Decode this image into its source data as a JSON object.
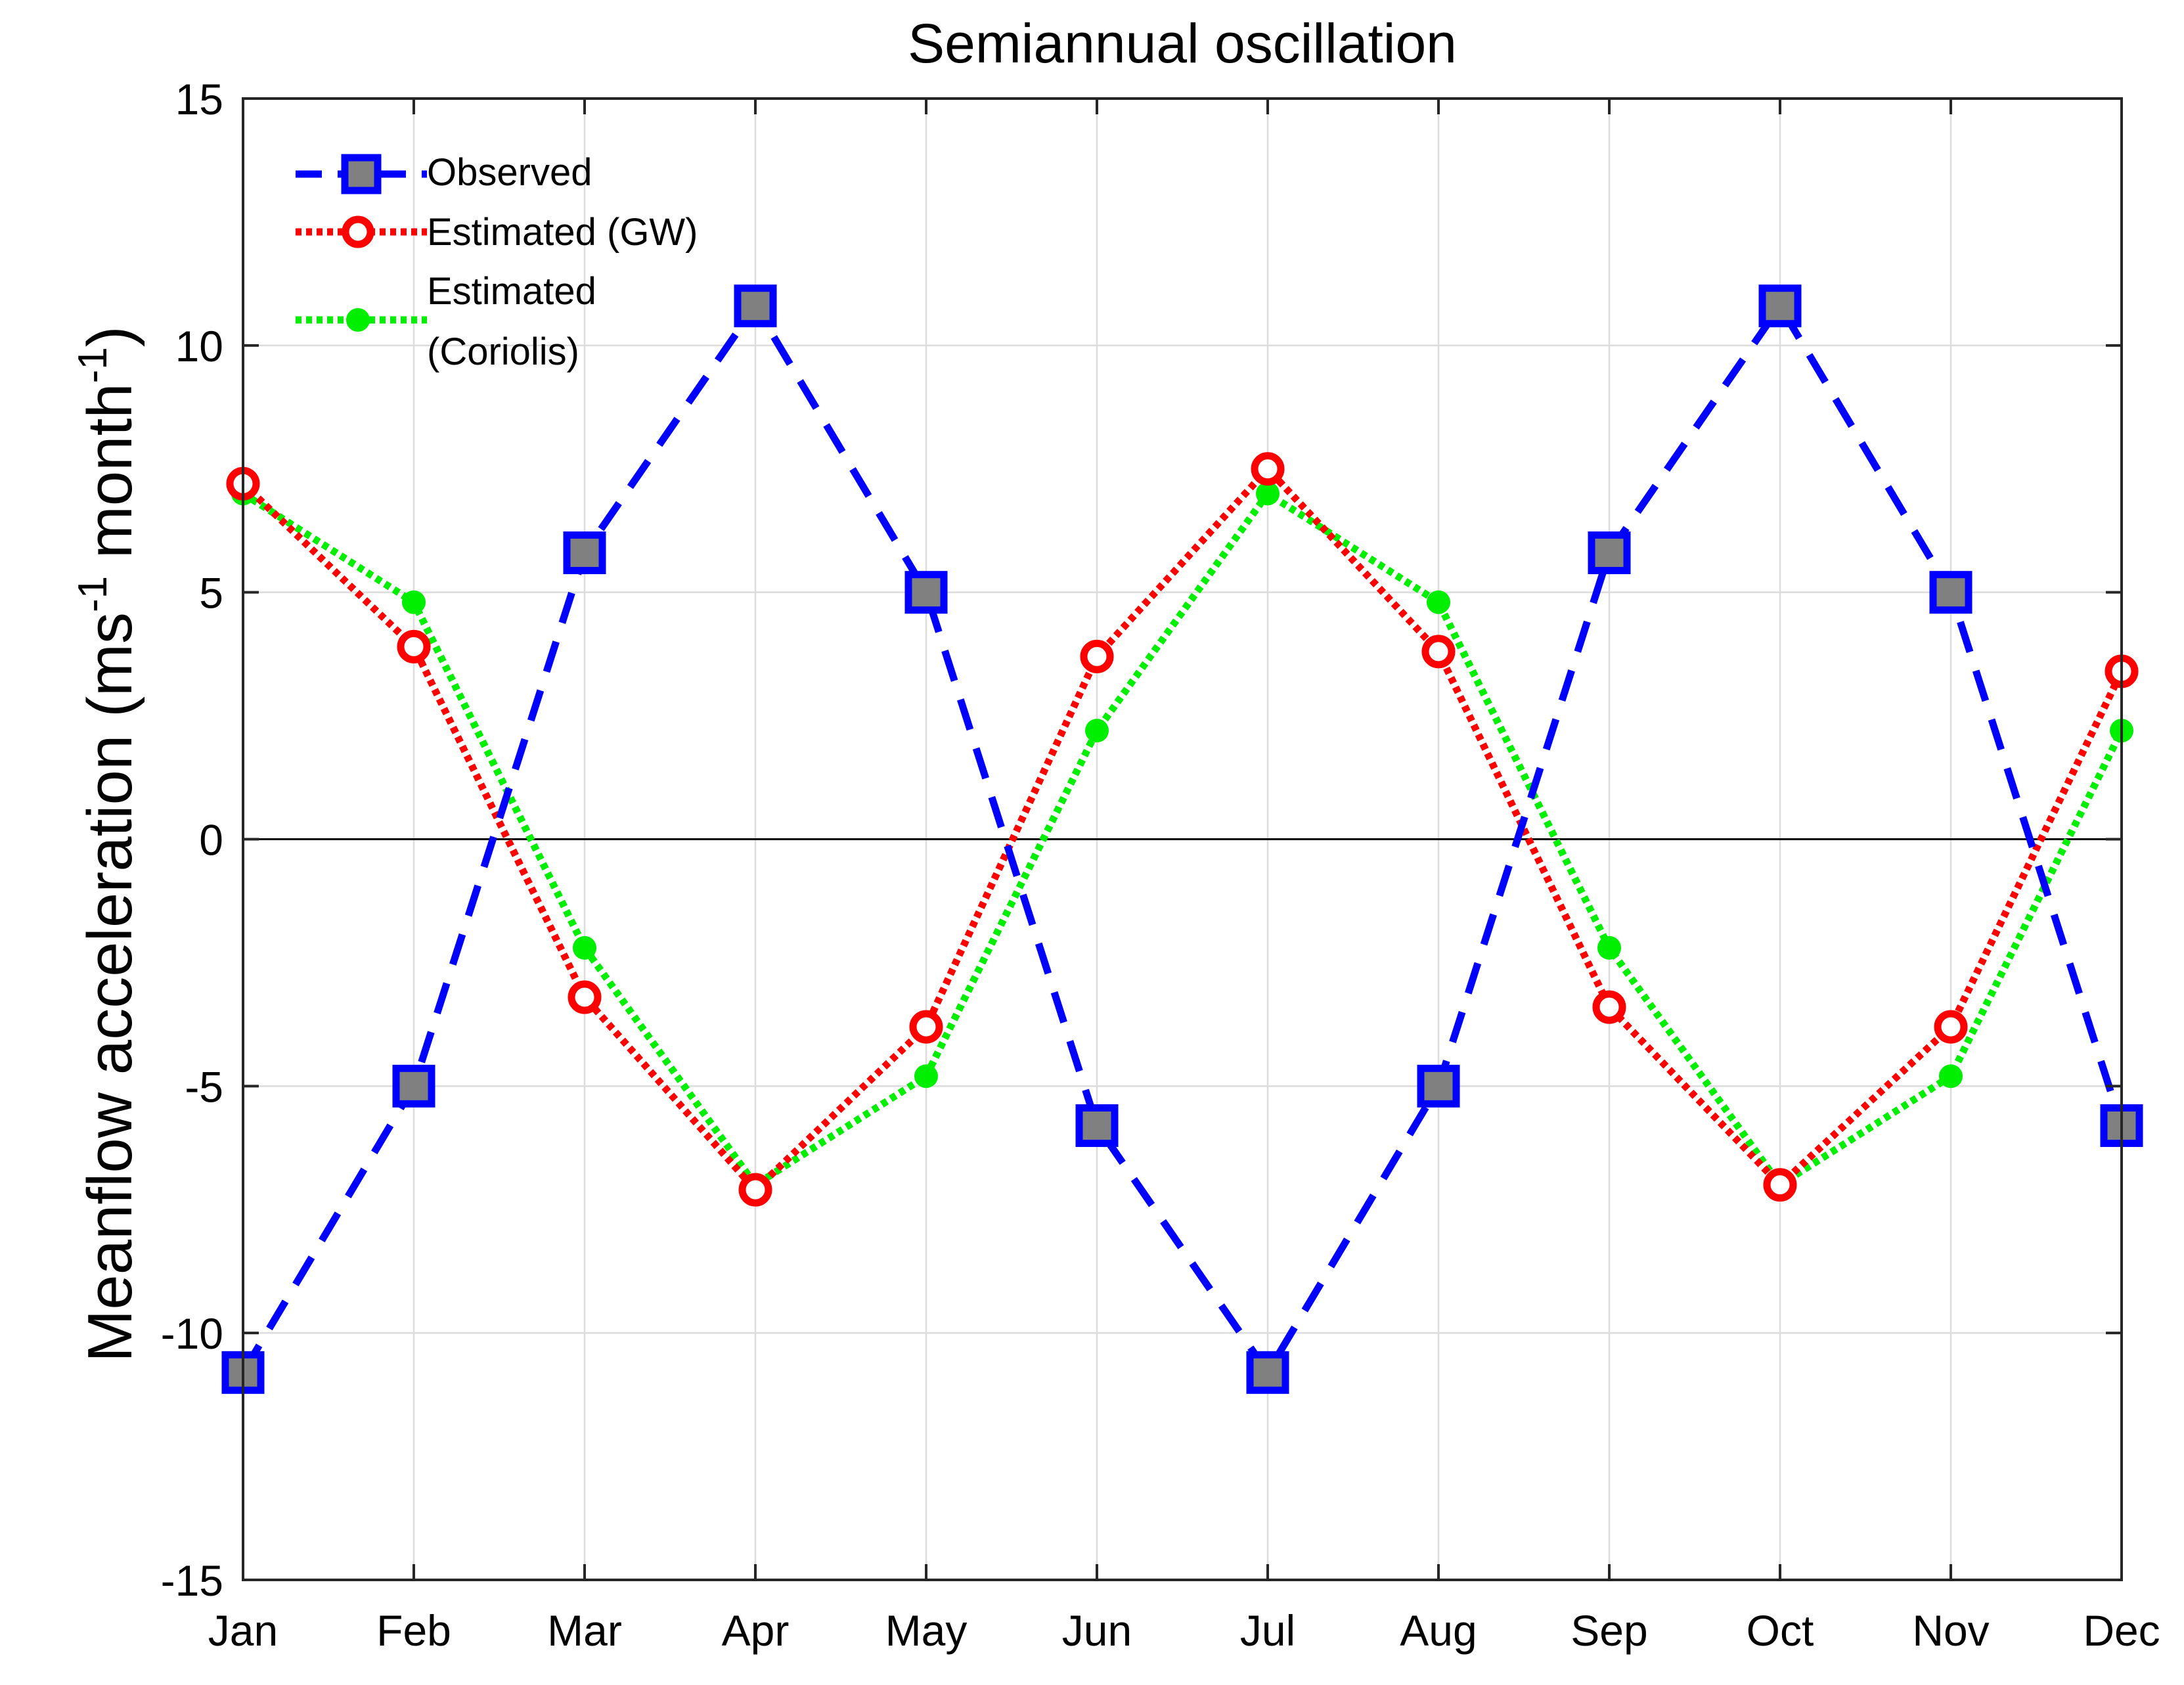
{
  "chart_data": {
    "type": "line",
    "title": "Semiannual oscillation",
    "xlabel": "",
    "ylabel_main": "Meanflow acceleration (ms",
    "ylabel_sup1": "-1",
    "ylabel_mid": " month",
    "ylabel_sup2": "-1",
    "ylabel_end": ")",
    "categories": [
      "Jan",
      "Feb",
      "Mar",
      "Apr",
      "May",
      "Jun",
      "Jul",
      "Aug",
      "Sep",
      "Oct",
      "Nov",
      "Dec"
    ],
    "ylim": [
      -15,
      15
    ],
    "yticks": [
      "-15",
      "-10",
      "-5",
      "0",
      "5",
      "10",
      "15"
    ],
    "grid": true,
    "legend_position": "top-left",
    "series": [
      {
        "name": "Observed",
        "color": "#0000ff",
        "marker_fill": "#808080",
        "line_style": "dashed",
        "marker": "square",
        "values": [
          -10.8,
          -5.0,
          5.8,
          10.8,
          5.0,
          -5.8,
          -10.8,
          -5.0,
          5.8,
          10.8,
          5.0,
          -5.8
        ]
      },
      {
        "name": "Estimated (GW)",
        "color": "#ff0000",
        "line_style": "dotted",
        "marker": "circle",
        "values": [
          7.2,
          3.9,
          -3.2,
          -7.1,
          -3.8,
          3.7,
          7.5,
          3.8,
          -3.4,
          -7.0,
          -3.8,
          3.4
        ]
      },
      {
        "name_line1": "Estimated",
        "name_line2": "(Coriolis)",
        "color": "#00ee00",
        "line_style": "dotted",
        "marker": "dot",
        "values": [
          7.0,
          4.8,
          -2.2,
          -7.0,
          -4.8,
          2.2,
          7.0,
          4.8,
          -2.2,
          -7.0,
          -4.8,
          2.2
        ]
      }
    ]
  }
}
